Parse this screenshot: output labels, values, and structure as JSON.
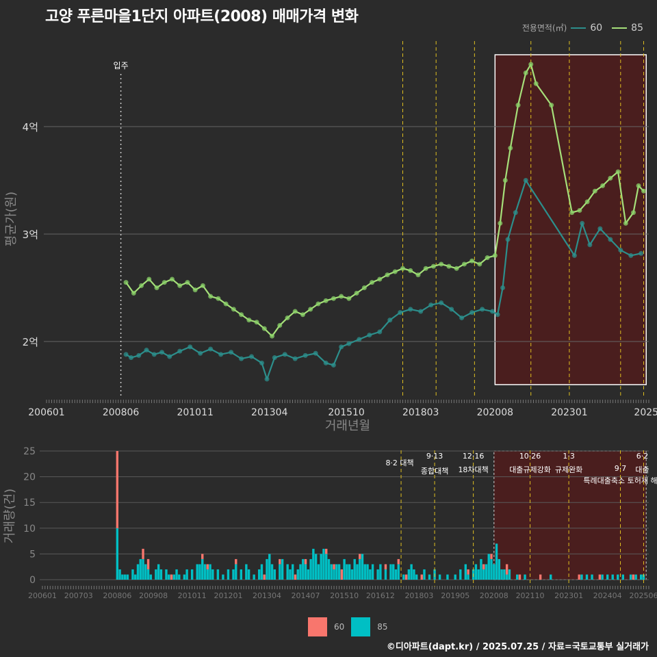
{
  "title": "고양 푸른마을1단지 아파트(2008) 매매가격 변화",
  "credit": "©디아파트(dapt.kr) / 2025.07.25 / 자료=국토교통부 실거래가",
  "colors": {
    "background": "#2b2b2b",
    "series_60_line": "#2c8f8c",
    "series_85_line": "#a6e07a",
    "series_60_point": "#2c8f8c",
    "series_85_point": "#8bd36a",
    "bar_60": "#f8766d",
    "bar_85": "#00bfc4",
    "policy_line": "#e0c020",
    "highlight_fill": "#4a1e1e"
  },
  "legend_top": {
    "title": "전용면적(㎡)",
    "items": [
      "60",
      "85"
    ]
  },
  "legend_bottom": {
    "items": [
      "60",
      "85"
    ]
  },
  "chart_data": [
    {
      "type": "line",
      "title": "고양 푸른마을1단지 아파트(2008) 매매가격 변화",
      "xlabel": "거래년월",
      "ylabel": "평균가(원)",
      "x_ticks": [
        "200601",
        "200806",
        "201011",
        "201304",
        "201510",
        "201803",
        "202008",
        "202301",
        "2025"
      ],
      "y_ticks": [
        "2억",
        "3억",
        "4억"
      ],
      "ylim": [
        1.45,
        4.85
      ],
      "xlim": [
        "2006-01",
        "2025-07"
      ],
      "annotation": {
        "label": "입주",
        "x": "2008-06"
      },
      "highlight_range": [
        "2020-08",
        "2025-07"
      ],
      "policy_lines": [
        "2017-08",
        "2018-09",
        "2019-12",
        "2021-10",
        "2023-01",
        "2024-09",
        "2025-06"
      ],
      "grid": true,
      "series": [
        {
          "name": "60",
          "points": [
            [
              "2008-08",
              1.88
            ],
            [
              "2008-10",
              1.85
            ],
            [
              "2009-01",
              1.87
            ],
            [
              "2009-04",
              1.92
            ],
            [
              "2009-07",
              1.88
            ],
            [
              "2009-10",
              1.9
            ],
            [
              "2010-01",
              1.86
            ],
            [
              "2010-05",
              1.91
            ],
            [
              "2010-09",
              1.95
            ],
            [
              "2011-01",
              1.89
            ],
            [
              "2011-05",
              1.93
            ],
            [
              "2011-09",
              1.88
            ],
            [
              "2012-01",
              1.9
            ],
            [
              "2012-05",
              1.84
            ],
            [
              "2012-09",
              1.86
            ],
            [
              "2013-01",
              1.8
            ],
            [
              "2013-03",
              1.65
            ],
            [
              "2013-06",
              1.85
            ],
            [
              "2013-10",
              1.88
            ],
            [
              "2014-02",
              1.84
            ],
            [
              "2014-06",
              1.87
            ],
            [
              "2014-10",
              1.89
            ],
            [
              "2015-02",
              1.8
            ],
            [
              "2015-05",
              1.78
            ],
            [
              "2015-08",
              1.95
            ],
            [
              "2015-11",
              1.98
            ],
            [
              "2016-03",
              2.02
            ],
            [
              "2016-07",
              2.06
            ],
            [
              "2016-11",
              2.09
            ],
            [
              "2017-03",
              2.2
            ],
            [
              "2017-07",
              2.27
            ],
            [
              "2017-11",
              2.3
            ],
            [
              "2018-03",
              2.28
            ],
            [
              "2018-07",
              2.34
            ],
            [
              "2018-11",
              2.36
            ],
            [
              "2019-03",
              2.3
            ],
            [
              "2019-07",
              2.22
            ],
            [
              "2019-11",
              2.27
            ],
            [
              "2020-03",
              2.3
            ],
            [
              "2020-07",
              2.28
            ],
            [
              "2020-09",
              2.25
            ],
            [
              "2020-11",
              2.5
            ],
            [
              "2021-01",
              2.95
            ],
            [
              "2021-04",
              3.2
            ],
            [
              "2021-08",
              3.5
            ],
            [
              "2023-03",
              2.8
            ],
            [
              "2023-06",
              3.1
            ],
            [
              "2023-09",
              2.9
            ],
            [
              "2024-01",
              3.05
            ],
            [
              "2024-05",
              2.95
            ],
            [
              "2024-09",
              2.85
            ],
            [
              "2025-01",
              2.8
            ],
            [
              "2025-05",
              2.82
            ]
          ]
        },
        {
          "name": "85",
          "points": [
            [
              "2008-08",
              2.55
            ],
            [
              "2008-11",
              2.45
            ],
            [
              "2009-02",
              2.52
            ],
            [
              "2009-05",
              2.58
            ],
            [
              "2009-08",
              2.5
            ],
            [
              "2009-11",
              2.55
            ],
            [
              "2010-02",
              2.58
            ],
            [
              "2010-05",
              2.52
            ],
            [
              "2010-08",
              2.55
            ],
            [
              "2010-11",
              2.48
            ],
            [
              "2011-02",
              2.52
            ],
            [
              "2011-05",
              2.42
            ],
            [
              "2011-08",
              2.4
            ],
            [
              "2011-11",
              2.35
            ],
            [
              "2012-02",
              2.3
            ],
            [
              "2012-05",
              2.25
            ],
            [
              "2012-08",
              2.2
            ],
            [
              "2012-11",
              2.18
            ],
            [
              "2013-02",
              2.12
            ],
            [
              "2013-05",
              2.05
            ],
            [
              "2013-08",
              2.15
            ],
            [
              "2013-11",
              2.22
            ],
            [
              "2014-02",
              2.28
            ],
            [
              "2014-05",
              2.25
            ],
            [
              "2014-08",
              2.3
            ],
            [
              "2014-11",
              2.35
            ],
            [
              "2015-02",
              2.38
            ],
            [
              "2015-05",
              2.4
            ],
            [
              "2015-08",
              2.42
            ],
            [
              "2015-11",
              2.4
            ],
            [
              "2016-02",
              2.45
            ],
            [
              "2016-05",
              2.5
            ],
            [
              "2016-08",
              2.55
            ],
            [
              "2016-11",
              2.58
            ],
            [
              "2017-02",
              2.62
            ],
            [
              "2017-05",
              2.65
            ],
            [
              "2017-08",
              2.68
            ],
            [
              "2017-11",
              2.66
            ],
            [
              "2018-02",
              2.62
            ],
            [
              "2018-05",
              2.68
            ],
            [
              "2018-08",
              2.7
            ],
            [
              "2018-11",
              2.72
            ],
            [
              "2019-02",
              2.7
            ],
            [
              "2019-05",
              2.68
            ],
            [
              "2019-08",
              2.72
            ],
            [
              "2019-11",
              2.75
            ],
            [
              "2020-02",
              2.72
            ],
            [
              "2020-05",
              2.78
            ],
            [
              "2020-08",
              2.8
            ],
            [
              "2020-10",
              3.1
            ],
            [
              "2020-12",
              3.5
            ],
            [
              "2021-02",
              3.8
            ],
            [
              "2021-05",
              4.2
            ],
            [
              "2021-08",
              4.5
            ],
            [
              "2021-10",
              4.58
            ],
            [
              "2021-12",
              4.4
            ],
            [
              "2022-06",
              4.2
            ],
            [
              "2023-02",
              3.2
            ],
            [
              "2023-05",
              3.22
            ],
            [
              "2023-08",
              3.3
            ],
            [
              "2023-11",
              3.4
            ],
            [
              "2024-02",
              3.45
            ],
            [
              "2024-05",
              3.52
            ],
            [
              "2024-08",
              3.58
            ],
            [
              "2024-11",
              3.1
            ],
            [
              "2025-02",
              3.2
            ],
            [
              "2025-04",
              3.45
            ],
            [
              "2025-06",
              3.4
            ]
          ]
        }
      ]
    },
    {
      "type": "bar",
      "ylabel": "거래량(건)",
      "x_ticks": [
        "200601",
        "200703",
        "200806",
        "200908",
        "201011",
        "201201",
        "201304",
        "201407",
        "201510",
        "201612",
        "201803",
        "201905",
        "202008",
        "202110",
        "202301",
        "202404",
        "202506"
      ],
      "y_ticks": [
        0,
        5,
        10,
        15,
        20,
        25
      ],
      "ylim": [
        -0.8,
        26
      ],
      "highlight_range": [
        "2020-08",
        "2025-07"
      ],
      "policy_lines": [
        {
          "date": "2017-08",
          "label_top": "",
          "label": "8·2 대책"
        },
        {
          "date": "2018-09",
          "label_top": "9·13",
          "label": "종합대책"
        },
        {
          "date": "2019-12",
          "label_top": "12·16",
          "label": "18차대책"
        },
        {
          "date": "2021-10",
          "label_top": "10·26",
          "label": "대출규제강화"
        },
        {
          "date": "2023-01",
          "label_top": "1·3",
          "label": "규제완화"
        },
        {
          "date": "2024-09",
          "label_top": "9·7",
          "label": "특례대출축소 토허제 해"
        },
        {
          "date": "2025-06",
          "label_top": "6·2",
          "label": "대출"
        }
      ],
      "series": [
        {
          "name": "60"
        },
        {
          "name": "85"
        }
      ],
      "monthly_60": {
        "2008-06": 15,
        "2009-04": 2,
        "2009-06": 2,
        "2010-03": 1,
        "2011-03": 1,
        "2011-05": 1,
        "2012-04": 1,
        "2013-03": 1,
        "2013-09": 1,
        "2014-03": 1,
        "2014-07": 1,
        "2015-03": 1,
        "2015-06": 1,
        "2015-09": 2,
        "2016-04": 1,
        "2017-02": 1,
        "2017-07": 1,
        "2017-10": 1,
        "2018-04": 1,
        "2019-10": 1,
        "2020-04": 1,
        "2020-07": 1,
        "2021-01": 2,
        "2021-06": 1,
        "2022-02": 1,
        "2023-05": 1,
        "2024-01": 1,
        "2025-02": 1
      },
      "monthly_85": {
        "2008-06": 10,
        "2008-07": 2,
        "2008-08": 1,
        "2008-09": 1,
        "2008-10": 1,
        "2008-12": 2,
        "2009-01": 1,
        "2009-02": 3,
        "2009-03": 4,
        "2009-04": 4,
        "2009-05": 3,
        "2009-06": 2,
        "2009-07": 1,
        "2009-09": 2,
        "2009-10": 3,
        "2009-11": 2,
        "2010-01": 2,
        "2010-02": 1,
        "2010-04": 1,
        "2010-05": 2,
        "2010-06": 1,
        "2010-08": 1,
        "2010-09": 2,
        "2010-11": 2,
        "2011-01": 3,
        "2011-02": 3,
        "2011-03": 4,
        "2011-04": 3,
        "2011-05": 2,
        "2011-06": 3,
        "2011-07": 2,
        "2011-09": 2,
        "2011-11": 1,
        "2012-01": 2,
        "2012-03": 2,
        "2012-04": 3,
        "2012-06": 2,
        "2012-08": 3,
        "2012-09": 2,
        "2012-11": 1,
        "2013-01": 2,
        "2013-02": 3,
        "2013-04": 4,
        "2013-05": 5,
        "2013-06": 3,
        "2013-07": 2,
        "2013-09": 3,
        "2013-10": 4,
        "2013-12": 3,
        "2014-01": 2,
        "2014-02": 3,
        "2014-04": 2,
        "2014-05": 3,
        "2014-06": 4,
        "2014-07": 3,
        "2014-08": 2,
        "2014-09": 4,
        "2014-10": 6,
        "2014-11": 5,
        "2014-12": 3,
        "2015-01": 5,
        "2015-02": 6,
        "2015-03": 5,
        "2015-04": 4,
        "2015-05": 3,
        "2015-06": 2,
        "2015-07": 3,
        "2015-08": 3,
        "2015-10": 4,
        "2015-11": 3,
        "2015-12": 3,
        "2016-01": 2,
        "2016-02": 4,
        "2016-03": 3,
        "2016-04": 4,
        "2016-05": 5,
        "2016-06": 3,
        "2016-07": 3,
        "2016-08": 2,
        "2016-09": 3,
        "2016-11": 2,
        "2016-12": 3,
        "2017-02": 2,
        "2017-04": 3,
        "2017-05": 3,
        "2017-06": 2,
        "2017-07": 3,
        "2017-09": 1,
        "2017-11": 2,
        "2017-12": 3,
        "2018-01": 2,
        "2018-02": 1,
        "2018-05": 2,
        "2018-07": 1,
        "2018-09": 2,
        "2018-11": 1,
        "2019-02": 1,
        "2019-05": 1,
        "2019-07": 2,
        "2019-09": 3,
        "2019-10": 1,
        "2019-12": 2,
        "2020-01": 3,
        "2020-02": 2,
        "2020-03": 4,
        "2020-04": 2,
        "2020-05": 3,
        "2020-06": 5,
        "2020-07": 4,
        "2020-08": 3,
        "2020-09": 7,
        "2020-10": 4,
        "2020-11": 2,
        "2020-12": 2,
        "2021-01": 1,
        "2021-02": 2,
        "2021-05": 1,
        "2021-08": 1,
        "2022-06": 1,
        "2023-06": 1,
        "2023-08": 1,
        "2023-10": 1,
        "2024-02": 1,
        "2024-04": 1,
        "2024-06": 1,
        "2024-08": 1,
        "2024-10": 1,
        "2025-01": 1,
        "2025-03": 1,
        "2025-05": 1,
        "2025-06": 1
      }
    }
  ]
}
